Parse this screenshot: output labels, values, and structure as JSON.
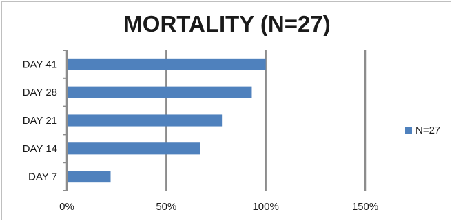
{
  "chart_data": {
    "type": "bar",
    "orientation": "horizontal",
    "title": "MORTALITY (N=27)",
    "categories": [
      "DAY 7",
      "DAY 14",
      "DAY 21",
      "DAY 28",
      "DAY 41"
    ],
    "series": [
      {
        "name": "N=27",
        "values": [
          22,
          67,
          78,
          93,
          100
        ],
        "color": "#4f81bd"
      }
    ],
    "x_ticks": [
      "0%",
      "50%",
      "100%",
      "150%"
    ],
    "xlim": [
      0,
      150
    ],
    "xlabel": "",
    "ylabel": "",
    "grid": "vertical",
    "legend_position": "right"
  }
}
